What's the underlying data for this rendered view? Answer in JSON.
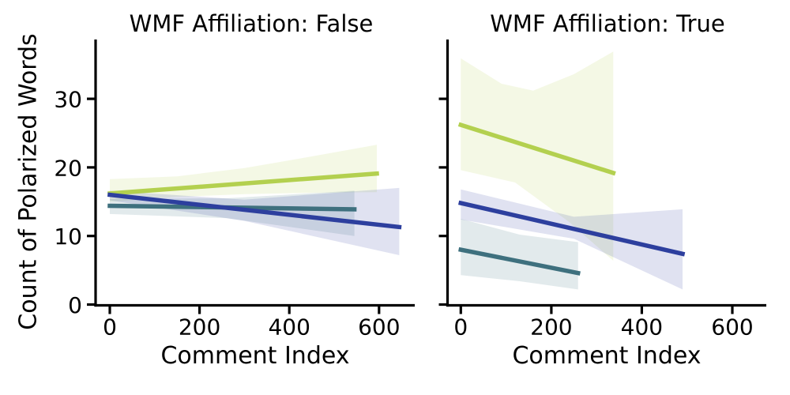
{
  "figure": {
    "background": "#ffffff",
    "axis_color": "#000000"
  },
  "chart_data": {
    "type": "line",
    "subtype": "faceted regression fit with confidence bands (no scatter points, no legend)",
    "xlabel": "Comment Index",
    "ylabel": "Count of Polarized Words",
    "x_ticks": [
      0,
      200,
      400,
      600
    ],
    "y_ticks": [
      0,
      10,
      20,
      30
    ],
    "xlim": [
      -32,
      680
    ],
    "ylim": [
      -0.2,
      38.6
    ],
    "grid": false,
    "band_opacity": 0.15,
    "facets": [
      {
        "title": "WMF Affiliation: False",
        "series": [
          {
            "name": "series-yellowgreen",
            "color": "#b3d04f",
            "line": [
              [
                0,
                16.2
              ],
              [
                595,
                19.1
              ]
            ],
            "ci_upper": [
              [
                0,
                18.3
              ],
              [
                150,
                18.7
              ],
              [
                300,
                19.9
              ],
              [
                450,
                21.6
              ],
              [
                595,
                23.3
              ]
            ],
            "ci_lower": [
              [
                0,
                15.0
              ],
              [
                150,
                15.7
              ],
              [
                300,
                16.1
              ],
              [
                450,
                16.3
              ],
              [
                595,
                16.4
              ]
            ]
          },
          {
            "name": "series-teal",
            "color": "#3e707e",
            "line": [
              [
                0,
                14.4
              ],
              [
                545,
                13.9
              ]
            ],
            "ci_upper": [
              [
                0,
                15.4
              ],
              [
                260,
                15.5
              ],
              [
                545,
                16.6
              ]
            ],
            "ci_lower": [
              [
                0,
                13.2
              ],
              [
                260,
                12.6
              ],
              [
                545,
                10.0
              ]
            ]
          },
          {
            "name": "series-blue",
            "color": "#2d3f9e",
            "line": [
              [
                0,
                16.0
              ],
              [
                645,
                11.3
              ]
            ],
            "ci_upper": [
              [
                0,
                16.6
              ],
              [
                300,
                15.3
              ],
              [
                645,
                17.0
              ]
            ],
            "ci_lower": [
              [
                0,
                15.2
              ],
              [
                300,
                12.2
              ],
              [
                645,
                7.2
              ]
            ]
          }
        ]
      },
      {
        "title": "WMF Affiliation: True",
        "series": [
          {
            "name": "series-yellowgreen",
            "color": "#b3d04f",
            "line": [
              [
                0,
                26.2
              ],
              [
                337,
                19.2
              ]
            ],
            "ci_upper": [
              [
                0,
                35.9
              ],
              [
                90,
                32.2
              ],
              [
                160,
                31.2
              ],
              [
                250,
                33.6
              ],
              [
                337,
                36.9
              ]
            ],
            "ci_lower": [
              [
                0,
                19.6
              ],
              [
                120,
                17.8
              ],
              [
                240,
                12.0
              ],
              [
                337,
                6.4
              ]
            ]
          },
          {
            "name": "series-teal",
            "color": "#3e707e",
            "line": [
              [
                0,
                8.0
              ],
              [
                259,
                4.6
              ]
            ],
            "ci_upper": [
              [
                0,
                12.5
              ],
              [
                130,
                10.2
              ],
              [
                259,
                9.1
              ]
            ],
            "ci_lower": [
              [
                0,
                4.3
              ],
              [
                130,
                3.4
              ],
              [
                259,
                2.2
              ]
            ]
          },
          {
            "name": "series-blue",
            "color": "#2d3f9e",
            "line": [
              [
                0,
                14.8
              ],
              [
                490,
                7.4
              ]
            ],
            "ci_upper": [
              [
                0,
                16.8
              ],
              [
                250,
                12.8
              ],
              [
                490,
                13.9
              ]
            ],
            "ci_lower": [
              [
                0,
                12.4
              ],
              [
                250,
                9.6
              ],
              [
                490,
                2.2
              ]
            ]
          }
        ]
      }
    ]
  }
}
